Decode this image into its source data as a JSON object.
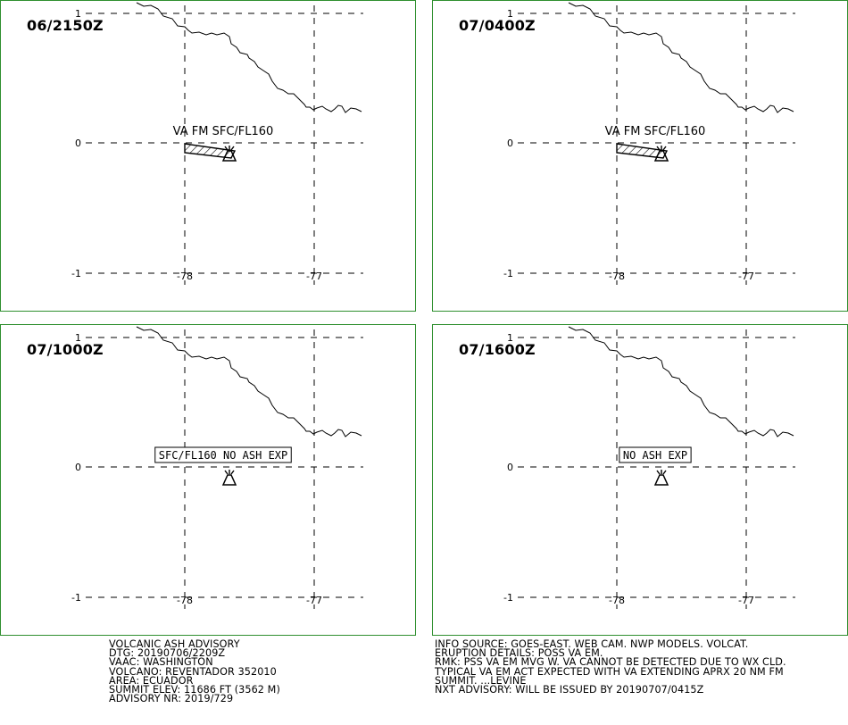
{
  "panels": [
    {
      "time": "06/2150Z",
      "label": "VA FM SFC/FL160",
      "label_boxed": false,
      "has_ash": true
    },
    {
      "time": "07/0400Z",
      "label": "VA FM SFC/FL160",
      "label_boxed": false,
      "has_ash": true
    },
    {
      "time": "07/1000Z",
      "label": "SFC/FL160 NO ASH EXP",
      "label_boxed": true,
      "has_ash": false
    },
    {
      "time": "07/1600Z",
      "label": "NO ASH EXP",
      "label_boxed": true,
      "has_ash": false
    }
  ],
  "axes": {
    "lat_labels": [
      "1",
      "0",
      "-1"
    ],
    "lon_labels": [
      "-78",
      "-77"
    ]
  },
  "advisory_left": [
    "VOLCANIC ASH ADVISORY",
    "DTG: 20190706/2209Z",
    "VAAC: WASHINGTON",
    "VOLCANO: REVENTADOR 352010",
    "AREA: ECUADOR",
    "SUMMIT ELEV: 11686 FT (3562 M)",
    "ADVISORY NR: 2019/729"
  ],
  "advisory_right": [
    "INFO SOURCE: GOES-EAST. WEB CAM. NWP MODELS. VOLCAT.",
    "ERUPTION DETAILS: POSS VA EM.",
    "RMK: PSS VA EM MVG W. VA CANNOT BE DETECTED DUE TO WX CLD.",
    "TYPICAL VA EM ACT EXPECTED WITH VA EXTENDING APRX 20 NM FM",
    "SUMMIT. ...LEVINE",
    "NXT ADVISORY: WILL BE ISSUED BY 20190707/0415Z"
  ],
  "colors": {
    "panel_border": "#2f8f2f",
    "lines": "#000000",
    "background": "#ffffff"
  }
}
